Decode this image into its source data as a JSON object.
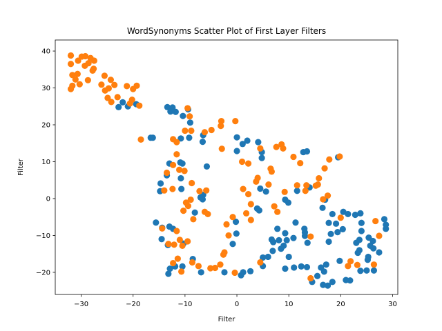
{
  "chart_data": {
    "type": "scatter",
    "title": "WordSynonyms Scatter Plot of First Layer Filters",
    "xlabel": "Filter",
    "ylabel": "Filter",
    "xlim": [
      -35,
      31
    ],
    "ylim": [
      -26,
      43
    ],
    "xticks": [
      -30,
      -20,
      -10,
      0,
      10,
      20,
      30
    ],
    "yticks": [
      -20,
      -10,
      0,
      10,
      20,
      30,
      40
    ],
    "grid": false,
    "legend": "none",
    "series": [
      {
        "color": "#1f77b4",
        "points": [
          [
            -22.8,
            24.8
          ],
          [
            -22,
            26.1
          ],
          [
            -21,
            25
          ],
          [
            -19.4,
            25.6
          ],
          [
            -16.2,
            16.5
          ],
          [
            -13.4,
            24.8
          ],
          [
            -12.4,
            24.7
          ],
          [
            -12.8,
            23.6
          ],
          [
            -11.8,
            23.5
          ],
          [
            -10.4,
            22.4
          ],
          [
            -9.4,
            24.2
          ],
          [
            -9,
            20.6
          ],
          [
            -10.8,
            16.3
          ],
          [
            -9.2,
            16.5
          ],
          [
            -6.6,
            15.4
          ],
          [
            -6.5,
            17.2
          ],
          [
            -5.8,
            8.7
          ],
          [
            -13,
            9.5
          ],
          [
            -13.5,
            6.3
          ],
          [
            -14.7,
            4.1
          ],
          [
            -14.8,
            2
          ],
          [
            -10.9,
            9.8
          ],
          [
            -10.5,
            9.5
          ],
          [
            -10.8,
            5.5
          ],
          [
            -10.7,
            2.6
          ],
          [
            -6.5,
            1
          ],
          [
            -7,
            0.3
          ],
          [
            -6.6,
            -0.2
          ],
          [
            -8.1,
            -3.8
          ],
          [
            -12.3,
            -8.2
          ],
          [
            -15.6,
            -6.5
          ],
          [
            -14.4,
            -7.9
          ],
          [
            -13,
            -7.6
          ],
          [
            -14.5,
            -11
          ],
          [
            -13.3,
            -12.6
          ],
          [
            -10.3,
            -12.2
          ],
          [
            -12.9,
            -19
          ],
          [
            -13.2,
            -20.4
          ],
          [
            -11.9,
            -18.4
          ],
          [
            -10.5,
            -18.4
          ],
          [
            -8.5,
            -16.4
          ],
          [
            -6.9,
            -20
          ],
          [
            -2.4,
            -20
          ],
          [
            0,
            16.6
          ],
          [
            0,
            12.9
          ],
          [
            1.1,
            14.8
          ],
          [
            2,
            15.7
          ],
          [
            4.1,
            15.3
          ],
          [
            4.8,
            12.6
          ],
          [
            4.8,
            11
          ],
          [
            -0.2,
            -6.3
          ],
          [
            -0.1,
            -9.5
          ],
          [
            -0.8,
            -12.3
          ],
          [
            3.9,
            -2.7
          ],
          [
            4.3,
            -3.2
          ],
          [
            4.5,
            2.7
          ],
          [
            5.6,
            1.9
          ],
          [
            5,
            -16
          ],
          [
            5,
            -18.3
          ],
          [
            6,
            -15.8
          ],
          [
            6.7,
            -11.1
          ],
          [
            7,
            -11.8
          ],
          [
            6.9,
            -14.2
          ],
          [
            7.8,
            -8.2
          ],
          [
            8.1,
            -11.3
          ],
          [
            8.5,
            -13.6
          ],
          [
            9,
            -12.8
          ],
          [
            9.3,
            -9.4
          ],
          [
            9.6,
            -11.3
          ],
          [
            10,
            -15.8
          ],
          [
            10.9,
            -10.7
          ],
          [
            11.3,
            -6.5
          ],
          [
            13.1,
            -10.1
          ],
          [
            13.1,
            -9.2
          ],
          [
            13.6,
            -12
          ],
          [
            13,
            -8.2
          ],
          [
            9.3,
            -0.3
          ],
          [
            9.9,
            -1.1
          ],
          [
            11.6,
            2.1
          ],
          [
            12.8,
            12.6
          ],
          [
            13.5,
            12.8
          ],
          [
            14,
            3
          ],
          [
            16.5,
            -2.5
          ],
          [
            17,
            -0.3
          ],
          [
            17.7,
            -6.6
          ],
          [
            18.1,
            -9.6
          ],
          [
            18.4,
            -4.2
          ],
          [
            17.7,
            -11.7
          ],
          [
            19.1,
            -6.8
          ],
          [
            19.4,
            -9.1
          ],
          [
            20.4,
            -8.3
          ],
          [
            20.5,
            -3.6
          ],
          [
            21.4,
            -4.2
          ],
          [
            22.8,
            -4.4
          ],
          [
            23.8,
            -4
          ],
          [
            24,
            -6.6
          ],
          [
            24,
            -8.8
          ],
          [
            23.6,
            -11.2
          ],
          [
            23,
            -12
          ],
          [
            23.6,
            -14
          ],
          [
            25.4,
            -10.6
          ],
          [
            25.7,
            -12.8
          ],
          [
            26.2,
            -11.5
          ],
          [
            26.3,
            -13.5
          ],
          [
            27.4,
            -14.6
          ],
          [
            28.4,
            -5.6
          ],
          [
            28.7,
            -7.1
          ],
          [
            28.7,
            -8.2
          ],
          [
            9.3,
            -19
          ],
          [
            11,
            -18.7
          ],
          [
            12.4,
            -18.4
          ],
          [
            13.5,
            -18.6
          ],
          [
            14.5,
            -22.6
          ],
          [
            15.5,
            -21
          ],
          [
            16.2,
            -18.7
          ],
          [
            16.8,
            -19.8
          ],
          [
            16.6,
            -23.4
          ],
          [
            17.2,
            -17.9
          ],
          [
            17.5,
            -23.6
          ],
          [
            18.4,
            -22.6
          ],
          [
            19.8,
            -16.9
          ],
          [
            21,
            -22.1
          ],
          [
            21.8,
            -22.2
          ],
          [
            23.3,
            -14.7
          ],
          [
            23.8,
            -19.6
          ],
          [
            25,
            -19.5
          ],
          [
            25.2,
            -16.6
          ],
          [
            25.3,
            -15.8
          ],
          [
            26.4,
            -19.5
          ],
          [
            19.5,
            11.2
          ],
          [
            -16.6,
            16.5
          ],
          [
            0.8,
            -20.8
          ],
          [
            1.2,
            -20
          ],
          [
            2.6,
            -19.7
          ]
        ]
      },
      {
        "color": "#ff7f0e",
        "points": [
          [
            -32,
            38.8
          ],
          [
            -32,
            36.5
          ],
          [
            -31.7,
            33.5
          ],
          [
            -30.7,
            33.8
          ],
          [
            -31.1,
            32.3
          ],
          [
            -30.3,
            31
          ],
          [
            -31.7,
            30.6
          ],
          [
            -32,
            29.7
          ],
          [
            -30.6,
            37.4
          ],
          [
            -29.9,
            38.5
          ],
          [
            -29.3,
            36
          ],
          [
            -29.2,
            38.6
          ],
          [
            -28.7,
            32.1
          ],
          [
            -28.6,
            36.7
          ],
          [
            -28.2,
            38.1
          ],
          [
            -27.6,
            35.2
          ],
          [
            -27.5,
            37.4
          ],
          [
            -27.8,
            34.7
          ],
          [
            -26.1,
            30.9
          ],
          [
            -25.5,
            33.3
          ],
          [
            -25.4,
            29.3
          ],
          [
            -24.9,
            27.3
          ],
          [
            -24.3,
            32.2
          ],
          [
            -23.6,
            30.8
          ],
          [
            -24.2,
            26.2
          ],
          [
            -24.7,
            29.9
          ],
          [
            -23,
            27.5
          ],
          [
            -21.2,
            30.5
          ],
          [
            -20.6,
            25.8
          ],
          [
            -20,
            29.7
          ],
          [
            -19.3,
            30.6
          ],
          [
            -20.2,
            26.8
          ],
          [
            -18.8,
            25.2
          ],
          [
            -18.5,
            16
          ],
          [
            -12.3,
            16.1
          ],
          [
            -11.6,
            15.3
          ],
          [
            -9.5,
            24.5
          ],
          [
            -9.1,
            22.3
          ],
          [
            -10,
            18.4
          ],
          [
            -8.8,
            18.4
          ],
          [
            -6.2,
            18
          ],
          [
            -4.9,
            18.6
          ],
          [
            -3.1,
            19.7
          ],
          [
            -3,
            21
          ],
          [
            -0.3,
            21
          ],
          [
            -2.9,
            13.5
          ],
          [
            -11.6,
            12
          ],
          [
            -11.1,
            7.8
          ],
          [
            -10.1,
            7.5
          ],
          [
            -12.3,
            9.1
          ],
          [
            -13.5,
            7
          ],
          [
            -12.4,
            2.6
          ],
          [
            -11.6,
            -8.8
          ],
          [
            -9.8,
            -1.1
          ],
          [
            -8.9,
            -0.3
          ],
          [
            -10.3,
            -3.3
          ],
          [
            -9.4,
            -2
          ],
          [
            -8.4,
            -5.6
          ],
          [
            -8.7,
            4.2
          ],
          [
            -7.2,
            2
          ],
          [
            -5.9,
            2.2
          ],
          [
            -6.2,
            -3.6
          ],
          [
            -5.6,
            -4.2
          ],
          [
            -14.4,
            -8.1
          ],
          [
            -14,
            2.2
          ],
          [
            -13.2,
            -12.3
          ],
          [
            -12.1,
            -12.5
          ],
          [
            -11,
            -11.2
          ],
          [
            -10.5,
            -12.8
          ],
          [
            -9.5,
            -11.6
          ],
          [
            -11.4,
            -16.3
          ],
          [
            -12.3,
            -17.5
          ],
          [
            -10.7,
            -19.8
          ],
          [
            -8.6,
            -17.3
          ],
          [
            -7.4,
            -18.3
          ],
          [
            -5.1,
            -18.9
          ],
          [
            -4.2,
            -18.8
          ],
          [
            -3.2,
            -17.9
          ],
          [
            -2.6,
            -15.2
          ],
          [
            -2.4,
            -14.6
          ],
          [
            -1.6,
            -10
          ],
          [
            -2,
            -7
          ],
          [
            -0.8,
            -5
          ],
          [
            -0.4,
            -20.1
          ],
          [
            1,
            10
          ],
          [
            2.2,
            9.5
          ],
          [
            1.2,
            2.6
          ],
          [
            2.2,
            1.2
          ],
          [
            1.8,
            -4
          ],
          [
            2.7,
            -1.5
          ],
          [
            2.7,
            -5.8
          ],
          [
            3.7,
            4.6
          ],
          [
            4,
            5.6
          ],
          [
            4.5,
            13.6
          ],
          [
            6.1,
            3.8
          ],
          [
            6.5,
            8.1
          ],
          [
            6.7,
            7.3
          ],
          [
            7.2,
            -2.1
          ],
          [
            7.8,
            -3.6
          ],
          [
            7.6,
            14
          ],
          [
            8.6,
            14.7
          ],
          [
            8.9,
            13.6
          ],
          [
            9.2,
            1.8
          ],
          [
            10.9,
            11.3
          ],
          [
            11.6,
            3.6
          ],
          [
            12.2,
            9.6
          ],
          [
            13.2,
            2.1
          ],
          [
            13.4,
            3.6
          ],
          [
            14.2,
            -10.3
          ],
          [
            15.2,
            3.5
          ],
          [
            15.6,
            3.8
          ],
          [
            15.8,
            5.5
          ],
          [
            16.6,
            -0.2
          ],
          [
            16.9,
            8.2
          ],
          [
            17.5,
            0.8
          ],
          [
            17.8,
            10.6
          ],
          [
            19.8,
            11.4
          ],
          [
            20,
            -5.2
          ],
          [
            21.4,
            -18.3
          ],
          [
            21.9,
            -17
          ],
          [
            23.2,
            -18
          ],
          [
            26.4,
            -17.9
          ],
          [
            26.7,
            -6.1
          ],
          [
            27.4,
            -10.1
          ],
          [
            4.5,
            -17.3
          ],
          [
            14.2,
            -21.6
          ]
        ]
      }
    ]
  }
}
